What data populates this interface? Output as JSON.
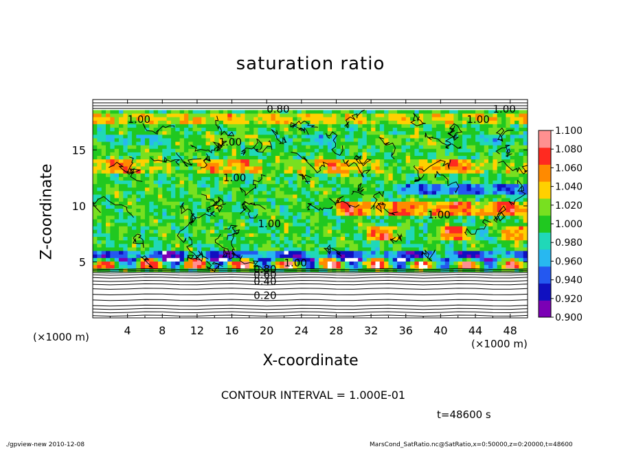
{
  "chart_data": {
    "type": "heatmap",
    "title": "saturation ratio",
    "xlabel": "X-coordinate",
    "ylabel": "Z-coordinate",
    "x_unit_left": "(×1000 m)",
    "x_unit_right": "(×1000 m)",
    "xlim": [
      0,
      50
    ],
    "ylim": [
      0,
      19.5
    ],
    "x_ticks": [
      "4",
      "8",
      "12",
      "16",
      "20",
      "24",
      "28",
      "32",
      "36",
      "40",
      "44",
      "48"
    ],
    "y_ticks": [
      "5",
      "10",
      "15"
    ],
    "colorbar": {
      "levels": [
        "0.900",
        "0.920",
        "0.940",
        "0.960",
        "0.980",
        "1.000",
        "1.020",
        "1.040",
        "1.060",
        "1.080",
        "1.100"
      ],
      "colors": [
        "#7b00b5",
        "#1010c0",
        "#2458f0",
        "#28b8f0",
        "#20d8b8",
        "#20c820",
        "#78e020",
        "#ffd000",
        "#ff8a00",
        "#ff2a20",
        "#ff9090"
      ],
      "range": [
        0.9,
        1.1
      ]
    },
    "contour_labels": [
      "0.80",
      "1.00",
      "1.00",
      "1.00",
      "1.00",
      "1.00",
      "1.00",
      "1.00",
      "1.00",
      "0.80",
      "0.60",
      "0.40",
      "0.20"
    ],
    "contour_interval": "CONTOUR INTERVAL = 1.000E-01",
    "time": "t=48600 s",
    "grid": false
  },
  "footer": {
    "left": "./gpview-new   2010-12-08",
    "right": "MarsCond_SatRatio.nc@SatRatio,x=0:50000,z=0:20000,t=48600"
  }
}
